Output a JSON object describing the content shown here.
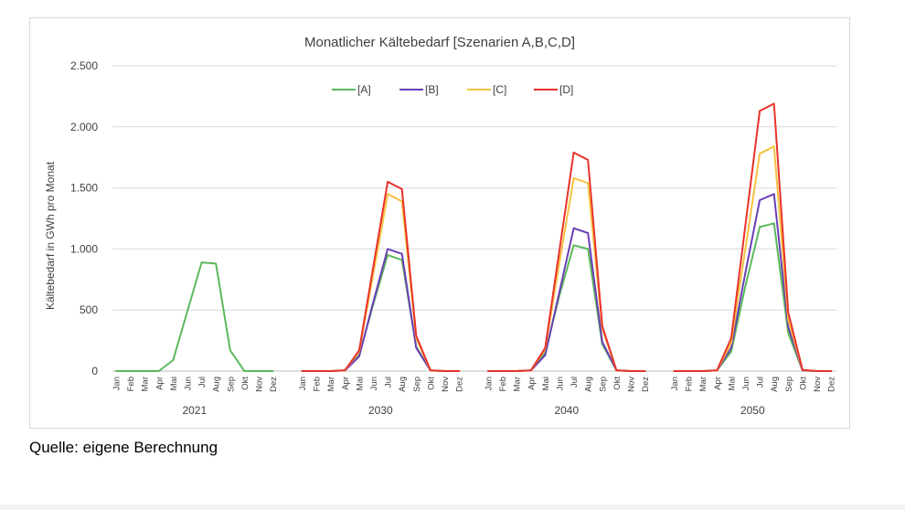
{
  "chart_data": {
    "type": "line",
    "title": "Monatlicher Kältebedarf [Szenarien A,B,C,D]",
    "ylabel": "Kältebedarf in GWh pro Monat",
    "xlabel": "",
    "ylim": [
      0,
      2500
    ],
    "yticks": [
      0,
      500,
      1000,
      1500,
      2000,
      2500
    ],
    "ytick_labels": [
      "0",
      "500",
      "1.000",
      "1.500",
      "2.000",
      "2.500"
    ],
    "grid": true,
    "legend_position": "top",
    "months": [
      "Jan",
      "Feb",
      "Mar",
      "Apr",
      "Mai",
      "Jun",
      "Jul",
      "Aug",
      "Sep",
      "Okt",
      "Nov",
      "Dez"
    ],
    "groups": [
      "2021",
      "2030",
      "2040",
      "2050"
    ],
    "series": [
      {
        "name": "[A]",
        "color": "#5cb85c",
        "values": [
          [
            0,
            0,
            0,
            0,
            90,
            490,
            890,
            880,
            170,
            0,
            0,
            0
          ],
          [
            0,
            0,
            0,
            5,
            130,
            550,
            950,
            910,
            200,
            5,
            0,
            0
          ],
          [
            0,
            0,
            0,
            5,
            150,
            620,
            1030,
            1000,
            220,
            5,
            0,
            0
          ],
          [
            0,
            0,
            0,
            5,
            160,
            700,
            1180,
            1210,
            310,
            5,
            0,
            0
          ]
        ]
      },
      {
        "name": "[B]",
        "color": "#6a3fb5",
        "values": [
          null,
          [
            0,
            0,
            0,
            5,
            120,
            570,
            1000,
            960,
            190,
            5,
            0,
            0
          ],
          [
            0,
            0,
            0,
            5,
            130,
            650,
            1170,
            1130,
            240,
            5,
            0,
            0
          ],
          [
            0,
            0,
            0,
            5,
            190,
            810,
            1400,
            1450,
            360,
            5,
            0,
            0
          ]
        ]
      },
      {
        "name": "[C]",
        "color": "#f5c242",
        "values": [
          null,
          [
            0,
            0,
            0,
            5,
            160,
            800,
            1450,
            1390,
            270,
            5,
            0,
            0
          ],
          [
            0,
            0,
            0,
            5,
            180,
            890,
            1580,
            1540,
            350,
            5,
            0,
            0
          ],
          [
            0,
            0,
            0,
            5,
            230,
            1010,
            1780,
            1840,
            420,
            10,
            0,
            0
          ]
        ]
      },
      {
        "name": "[D]",
        "color": "#e8322b",
        "values": [
          null,
          [
            0,
            0,
            0,
            5,
            170,
            860,
            1550,
            1490,
            290,
            5,
            0,
            0
          ],
          [
            0,
            0,
            0,
            5,
            190,
            990,
            1790,
            1730,
            370,
            5,
            0,
            0
          ],
          [
            0,
            0,
            0,
            5,
            270,
            1200,
            2130,
            2190,
            480,
            10,
            0,
            0
          ]
        ]
      }
    ]
  },
  "source_note": "Quelle: eigene Berechnung"
}
